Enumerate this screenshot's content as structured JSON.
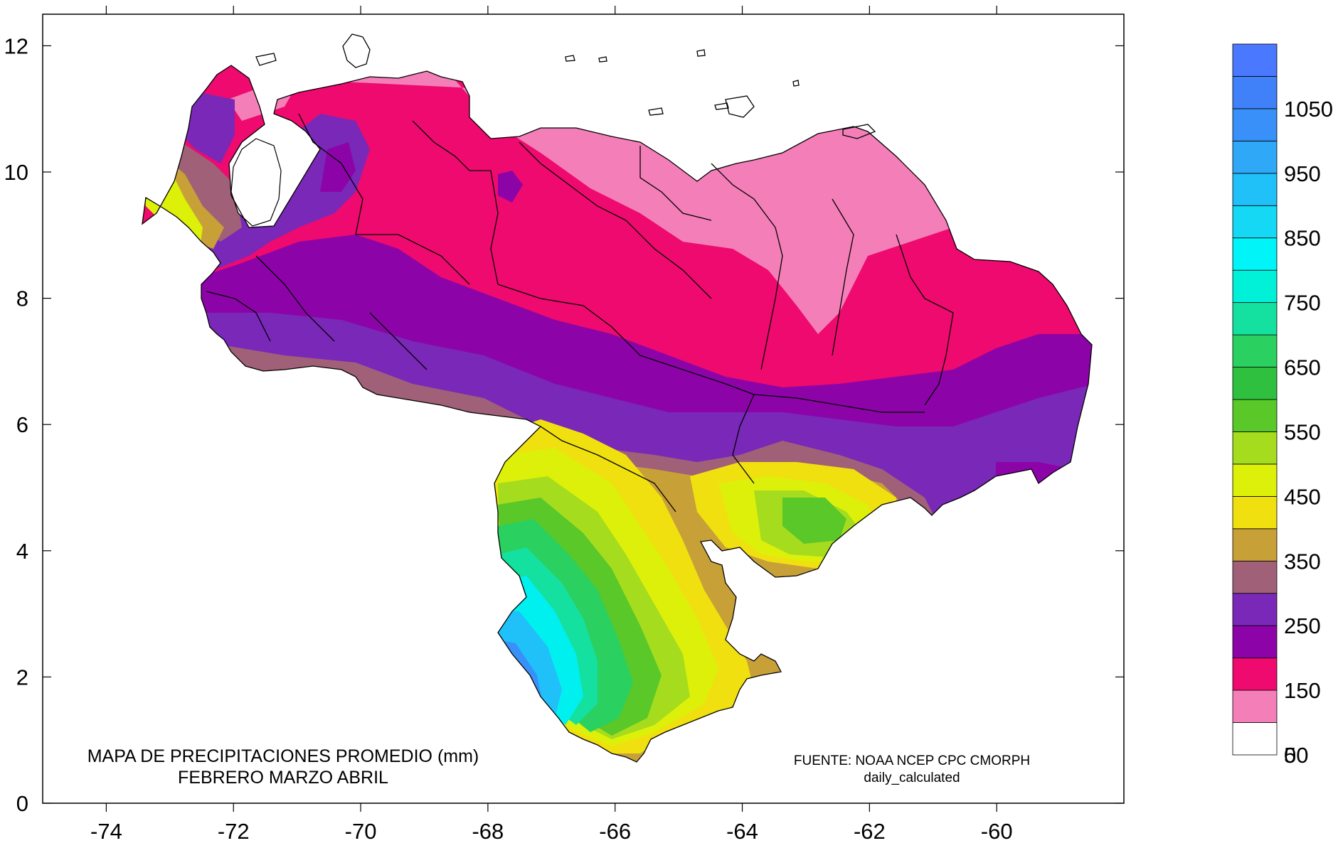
{
  "caption": {
    "line1": "MAPA DE PRECIPITACIONES PROMEDIO (mm)",
    "line2": "FEBRERO MARZO ABRIL"
  },
  "source": {
    "line1": "FUENTE: NOAA NCEP CPC CMORPH",
    "line2": "daily_calculated"
  },
  "axes": {
    "x_ticks": [
      "-74",
      "-72",
      "-70",
      "-68",
      "-66",
      "-64",
      "-62",
      "-60"
    ],
    "y_ticks": [
      "12",
      "10",
      "8",
      "6",
      "4",
      "2",
      "0"
    ],
    "x_range": [
      -75,
      -58
    ],
    "y_range": [
      0,
      12.5
    ]
  },
  "legend": {
    "labels": [
      "1050",
      "950",
      "850",
      "750",
      "650",
      "550",
      "450",
      "350",
      "250",
      "150",
      "50",
      "0"
    ],
    "colors": [
      "#ffffff",
      "#f47fb8",
      "#ee0a6e",
      "#8c04a8",
      "#7a28b8",
      "#a06078",
      "#c8a038",
      "#f0e010",
      "#dcf00a",
      "#a6dc1e",
      "#5ac828",
      "#30c040",
      "#2ad060",
      "#14e0a0",
      "#00f0d8",
      "#00f4f8",
      "#14d8f4",
      "#20c0f8",
      "#30a8f8",
      "#3890f8",
      "#4080f8",
      "#4a78ff"
    ]
  },
  "map_colors": {
    "pink": "#f47fb8",
    "magenta": "#ee0a6e",
    "dark_purple": "#8c04a8",
    "purple": "#7a28b8",
    "mauve": "#a06078",
    "tan": "#c8a038",
    "yellow": "#f0e010",
    "yellow_green": "#dcf00a",
    "light_green": "#a6dc1e",
    "green": "#5ac828",
    "dark_green": "#30c040",
    "teal": "#14e0a0",
    "cyan": "#00f0f0",
    "light_blue": "#20c0f8",
    "blue": "#3890f8"
  }
}
